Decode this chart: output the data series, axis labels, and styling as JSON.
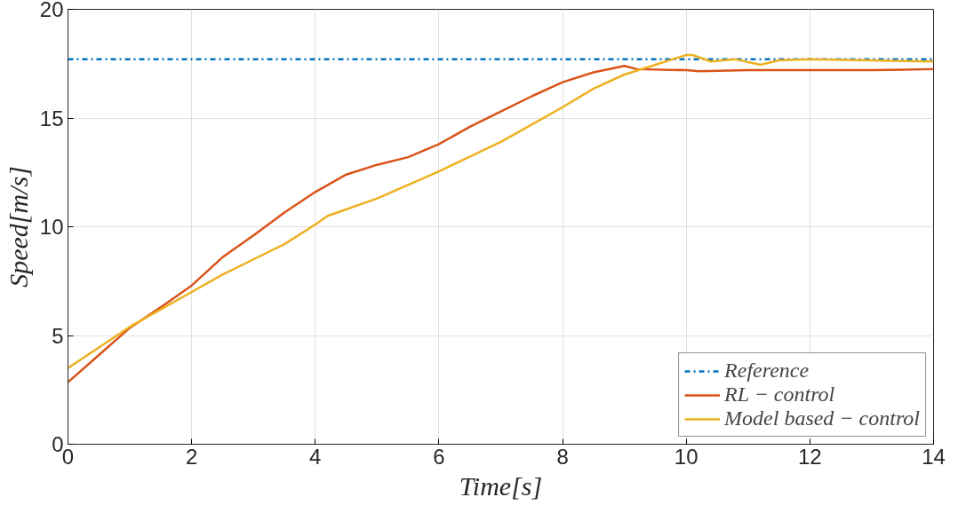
{
  "chart_data": {
    "type": "line",
    "xlabel": "Time[s]",
    "ylabel": "Speed[m/s]",
    "xlim": [
      0,
      14
    ],
    "ylim": [
      0,
      20
    ],
    "xticks": [
      0,
      2,
      4,
      6,
      8,
      10,
      12,
      14
    ],
    "yticks": [
      0,
      5,
      10,
      15,
      20
    ],
    "grid": true,
    "legend": "bottom right",
    "marker": "none",
    "series": [
      {
        "name": "Reference",
        "color": "#0072bd",
        "line_style": "dashdot",
        "x": [
          0,
          14
        ],
        "values": [
          17.7,
          17.7
        ]
      },
      {
        "name": "RL − control",
        "color": "#d95319",
        "line_style": "solid",
        "x": [
          0,
          0.5,
          1,
          1.5,
          2,
          2.5,
          3,
          3.5,
          4,
          4.5,
          5,
          5.5,
          6,
          6.5,
          7,
          7.5,
          8,
          8.5,
          9,
          9.2,
          10,
          10.2,
          11,
          12,
          13,
          14
        ],
        "values": [
          2.85,
          4.1,
          5.35,
          6.3,
          7.3,
          8.6,
          9.6,
          10.65,
          11.6,
          12.4,
          12.85,
          13.2,
          13.8,
          14.6,
          15.3,
          16.0,
          16.65,
          17.1,
          17.4,
          17.25,
          17.2,
          17.15,
          17.2,
          17.2,
          17.2,
          17.25
        ]
      },
      {
        "name": "Model based − control",
        "color": "#edb120",
        "line_style": "solid",
        "x": [
          0,
          0.5,
          1,
          1.5,
          2,
          2.5,
          3,
          3.5,
          4,
          4.2,
          5,
          6,
          7,
          7.5,
          8,
          8.5,
          9,
          9.5,
          10,
          10.1,
          10.4,
          10.8,
          11.2,
          11.5,
          12,
          14
        ],
        "values": [
          3.5,
          4.45,
          5.4,
          6.2,
          7.0,
          7.8,
          8.5,
          9.2,
          10.1,
          10.5,
          11.3,
          12.55,
          13.9,
          14.7,
          15.5,
          16.35,
          17.0,
          17.45,
          17.9,
          17.9,
          17.6,
          17.7,
          17.45,
          17.65,
          17.7,
          17.6
        ]
      }
    ]
  }
}
